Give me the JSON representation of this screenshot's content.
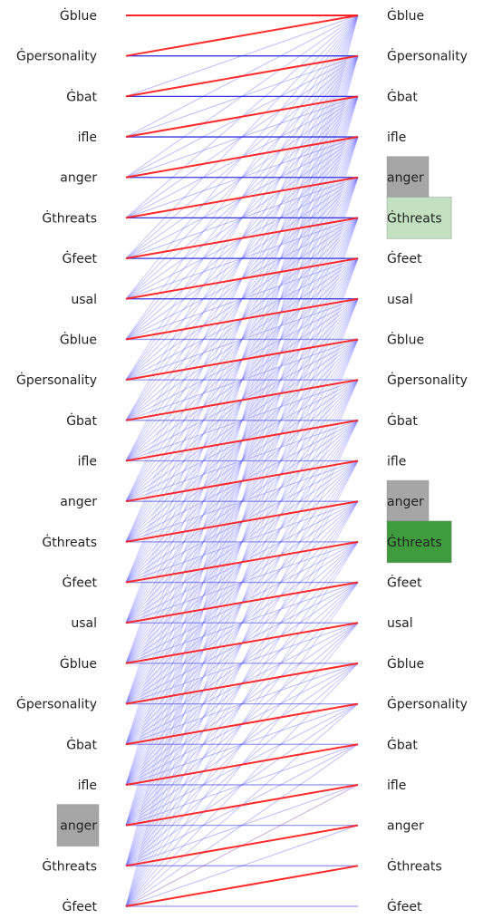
{
  "left_tokens": [
    "Ġblue",
    "Ġpersonality",
    "Ġbat",
    "ifle",
    "anger",
    "Ġthreats",
    "Ġfeet",
    "usal",
    "Ġblue",
    "Ġpersonality",
    "Ġbat",
    "ifle",
    "anger",
    "Ġthreats",
    "Ġfeet",
    "usal",
    "Ġblue",
    "Ġpersonality",
    "Ġbat",
    "ifle",
    "anger",
    "Ġthreats",
    "Ġfeet"
  ],
  "right_tokens": [
    "Ġblue",
    "Ġpersonality",
    "Ġbat",
    "ifle",
    "anger",
    "Ġthreats",
    "Ġfeet",
    "usal",
    "Ġblue",
    "Ġpersonality",
    "Ġbat",
    "ifle",
    "anger",
    "Ġthreats",
    "Ġfeet",
    "usal",
    "Ġblue",
    "Ġpersonality",
    "Ġbat",
    "ifle",
    "anger",
    "Ġthreats",
    "Ġfeet"
  ],
  "left_highlights": [
    {
      "index": 20,
      "color": "#a6a6a6"
    }
  ],
  "right_highlights": [
    {
      "index": 4,
      "color": "#a6a6a6"
    },
    {
      "index": 5,
      "color": "#c3e0c0"
    },
    {
      "index": 12,
      "color": "#a6a6a6"
    },
    {
      "index": 13,
      "color": "#3e9c3e"
    }
  ],
  "colors": {
    "same_position_edge": "#2020d8",
    "shift_edge": "#ff2020",
    "attention_edge": "#7a7aff"
  },
  "edges": {
    "shift_by_one": true,
    "same_position": true,
    "prefix_attention_from_left": 22
  }
}
